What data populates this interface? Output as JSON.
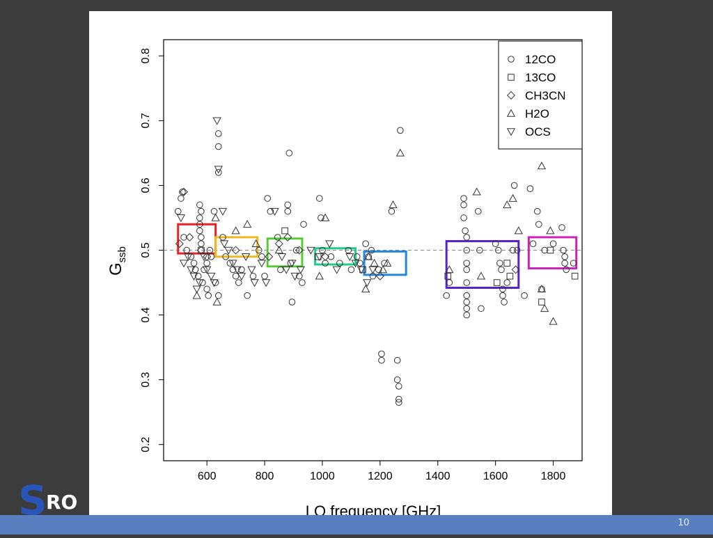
{
  "slide": {
    "page_number": "10",
    "logo_text": "SRO"
  },
  "colors": {
    "background": "#3c3c3c",
    "footer": "#5a7fc0",
    "logo_blue": "#2a55b8"
  },
  "chart_data": {
    "type": "scatter",
    "title": "",
    "xlabel": "LO frequency [GHz]",
    "ylabel": "G_ssb",
    "xlim": [
      450,
      1900
    ],
    "ylim": [
      0.175,
      0.825
    ],
    "xticks": [
      600,
      800,
      1000,
      1200,
      1400,
      1600,
      1800
    ],
    "yticks": [
      0.2,
      0.3,
      0.4,
      0.5,
      0.6,
      0.7,
      0.8
    ],
    "reference_line": 0.5,
    "legend_position": "top-right",
    "grid": false,
    "series": [
      {
        "name": "12CO",
        "marker": "circle",
        "points": [
          [
            500,
            0.56
          ],
          [
            510,
            0.58
          ],
          [
            515,
            0.59
          ],
          [
            520,
            0.52
          ],
          [
            530,
            0.5
          ],
          [
            545,
            0.49
          ],
          [
            555,
            0.48
          ],
          [
            560,
            0.47
          ],
          [
            570,
            0.46
          ],
          [
            575,
            0.57
          ],
          [
            575,
            0.55
          ],
          [
            575,
            0.54
          ],
          [
            575,
            0.53
          ],
          [
            580,
            0.56
          ],
          [
            580,
            0.52
          ],
          [
            580,
            0.51
          ],
          [
            585,
            0.45
          ],
          [
            590,
            0.47
          ],
          [
            600,
            0.44
          ],
          [
            600,
            0.48
          ],
          [
            605,
            0.43
          ],
          [
            610,
            0.5
          ],
          [
            615,
            0.49
          ],
          [
            625,
            0.56
          ],
          [
            630,
            0.45
          ],
          [
            640,
            0.68
          ],
          [
            640,
            0.66
          ],
          [
            640,
            0.62
          ],
          [
            640,
            0.43
          ],
          [
            655,
            0.52
          ],
          [
            665,
            0.49
          ],
          [
            680,
            0.48
          ],
          [
            690,
            0.47
          ],
          [
            700,
            0.46
          ],
          [
            710,
            0.45
          ],
          [
            720,
            0.47
          ],
          [
            740,
            0.43
          ],
          [
            760,
            0.46
          ],
          [
            780,
            0.5
          ],
          [
            790,
            0.49
          ],
          [
            800,
            0.46
          ],
          [
            810,
            0.58
          ],
          [
            820,
            0.56
          ],
          [
            845,
            0.52
          ],
          [
            855,
            0.47
          ],
          [
            880,
            0.57
          ],
          [
            880,
            0.56
          ],
          [
            885,
            0.65
          ],
          [
            890,
            0.48
          ],
          [
            895,
            0.42
          ],
          [
            910,
            0.5
          ],
          [
            920,
            0.46
          ],
          [
            930,
            0.45
          ],
          [
            935,
            0.54
          ],
          [
            990,
            0.58
          ],
          [
            995,
            0.55
          ],
          [
            1000,
            0.5
          ],
          [
            1010,
            0.48
          ],
          [
            1030,
            0.49
          ],
          [
            1060,
            0.48
          ],
          [
            1090,
            0.5
          ],
          [
            1100,
            0.47
          ],
          [
            1120,
            0.49
          ],
          [
            1130,
            0.48
          ],
          [
            1150,
            0.51
          ],
          [
            1160,
            0.49
          ],
          [
            1170,
            0.5
          ],
          [
            1175,
            0.46
          ],
          [
            1195,
            0.47
          ],
          [
            1205,
            0.33
          ],
          [
            1205,
            0.34
          ],
          [
            1215,
            0.48
          ],
          [
            1240,
            0.56
          ],
          [
            1260,
            0.33
          ],
          [
            1260,
            0.3
          ],
          [
            1265,
            0.29
          ],
          [
            1265,
            0.27
          ],
          [
            1265,
            0.265
          ],
          [
            1270,
            0.685
          ],
          [
            1430,
            0.43
          ],
          [
            1440,
            0.45
          ],
          [
            1490,
            0.58
          ],
          [
            1490,
            0.57
          ],
          [
            1490,
            0.55
          ],
          [
            1495,
            0.53
          ],
          [
            1500,
            0.52
          ],
          [
            1500,
            0.5
          ],
          [
            1500,
            0.48
          ],
          [
            1500,
            0.47
          ],
          [
            1500,
            0.45
          ],
          [
            1500,
            0.43
          ],
          [
            1500,
            0.42
          ],
          [
            1500,
            0.41
          ],
          [
            1500,
            0.4
          ],
          [
            1540,
            0.56
          ],
          [
            1545,
            0.5
          ],
          [
            1550,
            0.41
          ],
          [
            1600,
            0.51
          ],
          [
            1610,
            0.5
          ],
          [
            1615,
            0.48
          ],
          [
            1620,
            0.47
          ],
          [
            1625,
            0.44
          ],
          [
            1625,
            0.43
          ],
          [
            1630,
            0.42
          ],
          [
            1640,
            0.45
          ],
          [
            1660,
            0.5
          ],
          [
            1665,
            0.6
          ],
          [
            1675,
            0.5
          ],
          [
            1700,
            0.43
          ],
          [
            1720,
            0.595
          ],
          [
            1730,
            0.51
          ],
          [
            1745,
            0.56
          ],
          [
            1750,
            0.54
          ],
          [
            1760,
            0.44
          ],
          [
            1770,
            0.5
          ],
          [
            1800,
            0.51
          ],
          [
            1830,
            0.535
          ],
          [
            1835,
            0.5
          ],
          [
            1840,
            0.49
          ],
          [
            1840,
            0.48
          ],
          [
            1845,
            0.47
          ],
          [
            1870,
            0.48
          ]
        ]
      },
      {
        "name": "13CO",
        "marker": "square",
        "points": [
          [
            580,
            0.5
          ],
          [
            870,
            0.53
          ],
          [
            985,
            0.49
          ],
          [
            1140,
            0.47
          ],
          [
            1435,
            0.46
          ],
          [
            1605,
            0.45
          ],
          [
            1640,
            0.48
          ],
          [
            1650,
            0.46
          ],
          [
            1760,
            0.42
          ],
          [
            1790,
            0.5
          ],
          [
            1875,
            0.46
          ]
        ]
      },
      {
        "name": "CH3CN",
        "marker": "diamond",
        "points": [
          [
            505,
            0.51
          ],
          [
            520,
            0.59
          ],
          [
            540,
            0.52
          ],
          [
            580,
            0.5
          ],
          [
            600,
            0.49
          ],
          [
            700,
            0.5
          ],
          [
            815,
            0.49
          ],
          [
            850,
            0.51
          ],
          [
            880,
            0.52
          ],
          [
            920,
            0.5
          ],
          [
            1010,
            0.49
          ],
          [
            1200,
            0.46
          ],
          [
            1670,
            0.47
          ]
        ]
      },
      {
        "name": "H2O",
        "marker": "triangle-up",
        "points": [
          [
            565,
            0.43
          ],
          [
            630,
            0.55
          ],
          [
            635,
            0.42
          ],
          [
            700,
            0.53
          ],
          [
            740,
            0.54
          ],
          [
            770,
            0.51
          ],
          [
            850,
            0.5
          ],
          [
            990,
            0.46
          ],
          [
            1010,
            0.55
          ],
          [
            1150,
            0.44
          ],
          [
            1160,
            0.49
          ],
          [
            1180,
            0.48
          ],
          [
            1210,
            0.47
          ],
          [
            1225,
            0.48
          ],
          [
            1245,
            0.57
          ],
          [
            1270,
            0.65
          ],
          [
            1440,
            0.47
          ],
          [
            1535,
            0.59
          ],
          [
            1550,
            0.46
          ],
          [
            1640,
            0.57
          ],
          [
            1680,
            0.53
          ],
          [
            1760,
            0.63
          ],
          [
            1760,
            0.44
          ],
          [
            1770,
            0.41
          ],
          [
            1790,
            0.53
          ],
          [
            1800,
            0.39
          ],
          [
            1660,
            0.58
          ]
        ]
      },
      {
        "name": "OCS",
        "marker": "triangle-down",
        "points": [
          [
            510,
            0.55
          ],
          [
            520,
            0.48
          ],
          [
            535,
            0.49
          ],
          [
            545,
            0.47
          ],
          [
            555,
            0.46
          ],
          [
            565,
            0.44
          ],
          [
            575,
            0.45
          ],
          [
            590,
            0.49
          ],
          [
            600,
            0.47
          ],
          [
            615,
            0.46
          ],
          [
            625,
            0.45
          ],
          [
            635,
            0.7
          ],
          [
            640,
            0.625
          ],
          [
            655,
            0.56
          ],
          [
            660,
            0.51
          ],
          [
            675,
            0.5
          ],
          [
            690,
            0.48
          ],
          [
            705,
            0.47
          ],
          [
            720,
            0.46
          ],
          [
            735,
            0.49
          ],
          [
            755,
            0.47
          ],
          [
            765,
            0.45
          ],
          [
            790,
            0.48
          ],
          [
            805,
            0.45
          ],
          [
            835,
            0.56
          ],
          [
            860,
            0.49
          ],
          [
            875,
            0.47
          ],
          [
            895,
            0.48
          ],
          [
            905,
            0.46
          ],
          [
            925,
            0.47
          ],
          [
            960,
            0.5
          ],
          [
            990,
            0.49
          ],
          [
            1025,
            0.51
          ],
          [
            1050,
            0.47
          ],
          [
            1095,
            0.49
          ],
          [
            1115,
            0.48
          ],
          [
            1135,
            0.47
          ],
          [
            1155,
            0.45
          ],
          [
            1175,
            0.47
          ]
        ]
      }
    ],
    "boxes": [
      {
        "color": "#ee2222",
        "x": [
          500,
          630
        ],
        "y": [
          0.495,
          0.54
        ]
      },
      {
        "color": "#eeb820",
        "x": [
          630,
          775
        ],
        "y": [
          0.49,
          0.52
        ]
      },
      {
        "color": "#55cc33",
        "x": [
          810,
          930
        ],
        "y": [
          0.475,
          0.518
        ]
      },
      {
        "color": "#22cc88",
        "x": [
          975,
          1115
        ],
        "y": [
          0.478,
          0.503
        ]
      },
      {
        "color": "#2288dd",
        "x": [
          1145,
          1290
        ],
        "y": [
          0.462,
          0.498
        ]
      },
      {
        "color": "#5522cc",
        "x": [
          1430,
          1680
        ],
        "y": [
          0.442,
          0.514
        ]
      },
      {
        "color": "#cc22bb",
        "x": [
          1715,
          1880
        ],
        "y": [
          0.472,
          0.52
        ]
      }
    ]
  }
}
